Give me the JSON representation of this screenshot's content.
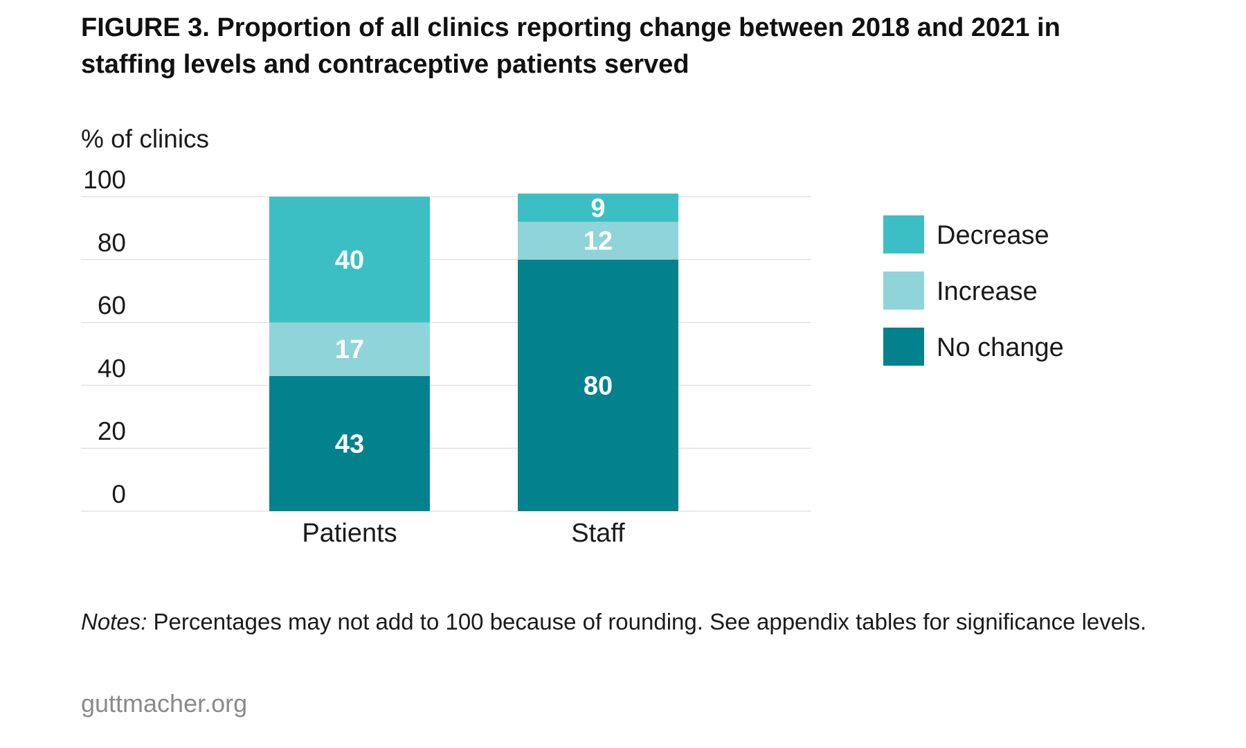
{
  "chart_data": {
    "type": "bar",
    "stacked": true,
    "title": "FIGURE 3. Proportion of all clinics reporting change between 2018 and 2021 in staffing levels and contraceptive patients served",
    "ylabel": "% of clinics",
    "xlabel": "",
    "categories": [
      "Patients",
      "Staff"
    ],
    "ylim": [
      0,
      100
    ],
    "yticks": [
      0,
      20,
      40,
      60,
      80,
      100
    ],
    "grid": true,
    "legend_position": "right",
    "series": [
      {
        "name": "No change",
        "values": [
          43,
          80
        ],
        "color": "#03828d"
      },
      {
        "name": "Increase",
        "values": [
          17,
          12
        ],
        "color": "#8fd4d9"
      },
      {
        "name": "Decrease",
        "values": [
          40,
          9
        ],
        "color": "#3bbfc4"
      }
    ],
    "legend_order": [
      "Decrease",
      "Increase",
      "No change"
    ]
  },
  "notes": {
    "lead": "Notes:",
    "text": " Percentages may not add to 100 because of rounding. See appendix tables for significance levels."
  },
  "source": "guttmacher.org"
}
